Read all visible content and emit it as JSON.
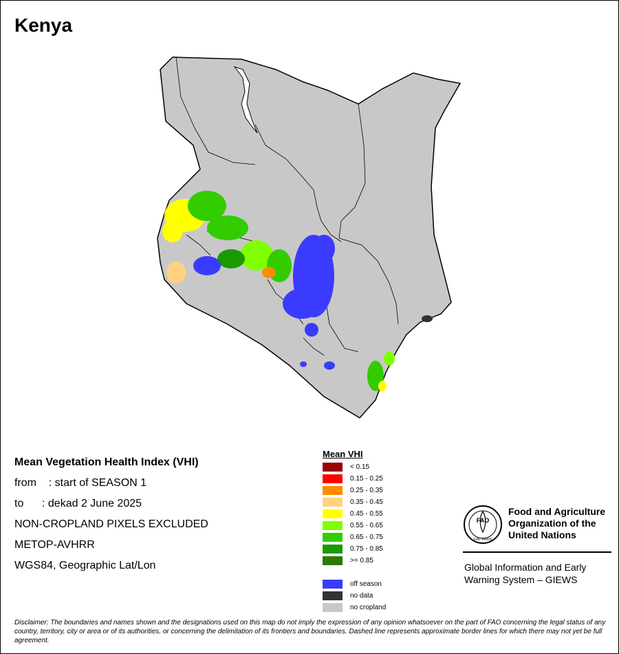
{
  "map": {
    "country": "Kenya"
  },
  "info": {
    "title": "Mean Vegetation Health Index (VHI)",
    "from_line": "from    : start of SEASON 1",
    "to_line": "to      : dekad 2 June 2025",
    "excluded": "NON-CROPLAND PIXELS EXCLUDED",
    "sensor": "METOP-AVHRR",
    "projection": "WGS84, Geographic Lat/Lon"
  },
  "legend": {
    "title": "Mean VHI",
    "classes": [
      {
        "label": "< 0.15",
        "color": "#990000"
      },
      {
        "label": "0.15 - 0.25",
        "color": "#ff0000"
      },
      {
        "label": "0.25 - 0.35",
        "color": "#ff8c00"
      },
      {
        "label": "0.35 - 0.45",
        "color": "#ffd27f"
      },
      {
        "label": "0.45 - 0.55",
        "color": "#ffff00"
      },
      {
        "label": "0.55 - 0.65",
        "color": "#7fff00"
      },
      {
        "label": "0.65 - 0.75",
        "color": "#33cc00"
      },
      {
        "label": "0.75 - 0.85",
        "color": "#1a9900"
      },
      {
        "label": ">= 0.85",
        "color": "#2d7a00"
      }
    ],
    "other_classes": [
      {
        "label": "off season",
        "color": "#3b3bff"
      },
      {
        "label": "no data",
        "color": "#333333"
      },
      {
        "label": "no cropland",
        "color": "#c8c8c8"
      }
    ]
  },
  "organization": {
    "name_line1": "Food and Agriculture",
    "name_line2": "Organization of the",
    "name_line3": "United Nations",
    "logo_text": "FAO",
    "logo_motto": "FIAT PANIS",
    "giews_line1": "Global Information and Early",
    "giews_line2": "Warning System – GIEWS"
  },
  "disclaimer": "Disclaimer: The boundaries and names shown and the designations used on this map do not imply the expression of any opinion whatsoever on the part of FAO concerning the legal status of any country, territory, city or area or of its authorities, or concerning the delimitation of its frontiers and boundaries. Dashed line represents approximate border lines for which there may not yet be full agreement."
}
